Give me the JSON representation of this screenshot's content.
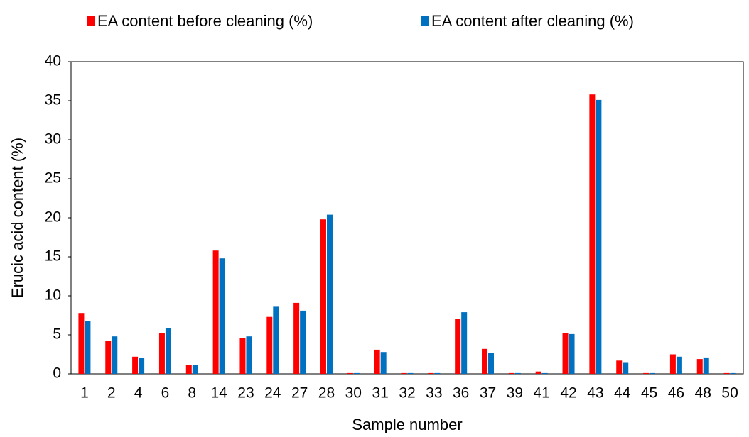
{
  "chart_data": {
    "type": "bar",
    "xlabel": "Sample number",
    "ylabel": "Erucic acid content  (%)",
    "categories": [
      "1",
      "2",
      "4",
      "6",
      "8",
      "14",
      "23",
      "24",
      "27",
      "28",
      "30",
      "31",
      "32",
      "33",
      "36",
      "37",
      "39",
      "41",
      "42",
      "43",
      "44",
      "45",
      "46",
      "48",
      "50"
    ],
    "series": [
      {
        "name": "EA content before cleaning (%)",
        "color": "#ff0000",
        "values": [
          7.8,
          4.2,
          2.2,
          5.2,
          1.1,
          15.8,
          4.6,
          7.3,
          9.1,
          19.8,
          0.1,
          3.1,
          0.1,
          0.1,
          7.0,
          3.2,
          0.1,
          0.3,
          5.2,
          35.8,
          1.7,
          0.1,
          2.5,
          1.9,
          0.1
        ]
      },
      {
        "name": "EA content after cleaning (%)",
        "color": "#0070c0",
        "values": [
          6.8,
          4.8,
          2.0,
          5.9,
          1.1,
          14.8,
          4.8,
          8.6,
          8.1,
          20.4,
          0.1,
          2.8,
          0.1,
          0.1,
          7.9,
          2.7,
          0.1,
          0.1,
          5.1,
          35.1,
          1.5,
          0.1,
          2.2,
          2.1,
          0.1
        ]
      }
    ],
    "ylim": [
      0,
      40
    ],
    "yticks": [
      0,
      5,
      10,
      15,
      20,
      25,
      30,
      35,
      40
    ],
    "legend": "top"
  }
}
